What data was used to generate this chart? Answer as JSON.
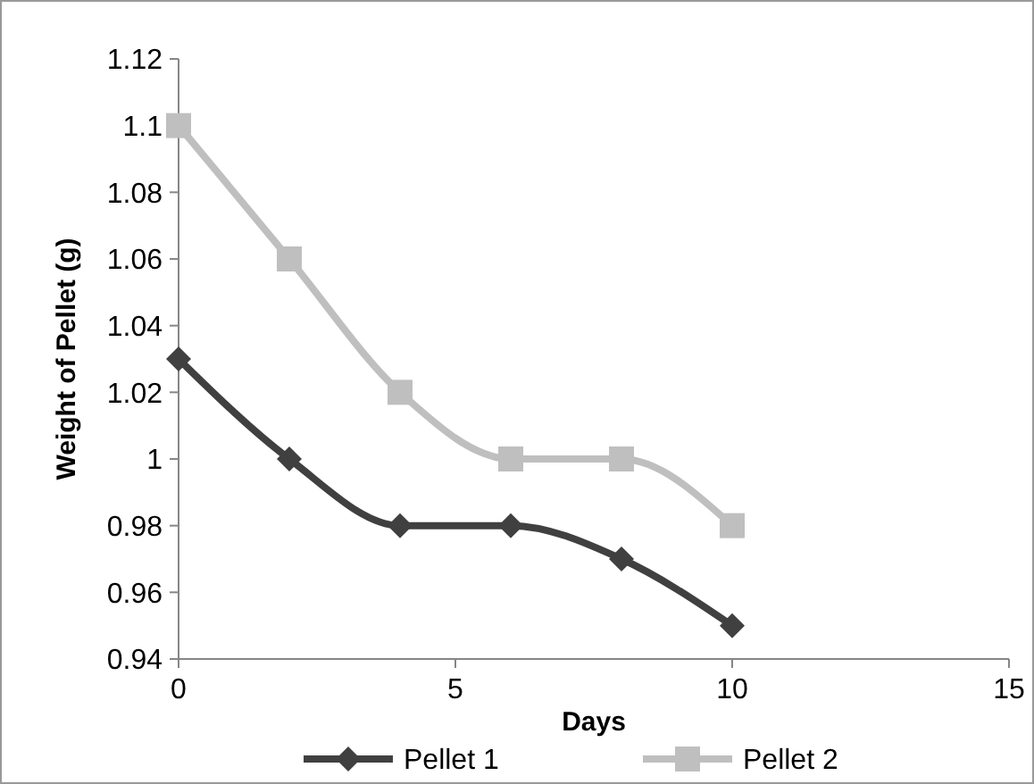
{
  "chart_data": {
    "type": "line",
    "xlabel": "Days",
    "ylabel": "Weight of Pellet (g)",
    "x": [
      0,
      2,
      4,
      6,
      8,
      10
    ],
    "xlim": [
      0,
      15
    ],
    "xticks": [
      0,
      5,
      10,
      15
    ],
    "ylim": [
      0.94,
      1.12
    ],
    "yticks": [
      0.94,
      0.96,
      0.98,
      {
        "value": 1,
        "label": "1"
      },
      1.02,
      1.04,
      1.06,
      1.08,
      {
        "value": 1.1,
        "label": "1.1"
      },
      1.12
    ],
    "grid": false,
    "legend": "bottom",
    "line_style": "solid",
    "series": [
      {
        "name": "Pellet 1",
        "color": "#404040",
        "marker": "diamond",
        "values": [
          1.03,
          1.0,
          0.98,
          0.98,
          0.97,
          0.95
        ]
      },
      {
        "name": "Pellet 2",
        "color": "#bfbfbf",
        "marker": "square",
        "values": [
          1.1,
          1.06,
          1.02,
          1.0,
          1.0,
          0.98
        ]
      }
    ]
  }
}
